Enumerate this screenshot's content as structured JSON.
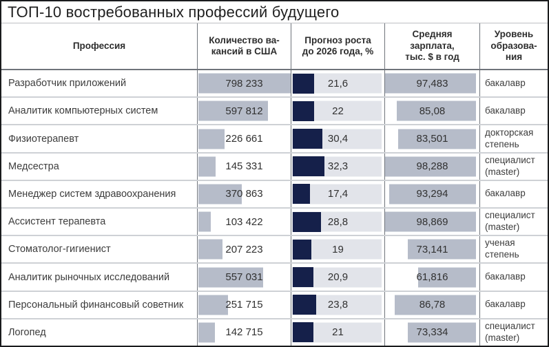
{
  "title": "ТОП-10 востребованных профессий будущего",
  "table": {
    "headers": {
      "profession": "Профессия",
      "vacancies": "Количество ва-\nкансий в США",
      "growth": "Прогноз роста\nдо 2026 года, %",
      "salary": "Средняя\nзарплата,\nтыс. $ в год",
      "education": "Уровень\nобразова-\nния"
    },
    "rows": [
      {
        "profession": "Разработчик приложений",
        "vacancies": "798 233",
        "vacancies_value": 798233,
        "growth": "21,6",
        "growth_value": 21.6,
        "salary": "97,483",
        "salary_value": 97.483,
        "education": "бакалавр"
      },
      {
        "profession": "Аналитик компьютерных систем",
        "vacancies": "597 812",
        "vacancies_value": 597812,
        "growth": "22",
        "growth_value": 22,
        "salary": "85,08",
        "salary_value": 85.08,
        "education": "бакалавр"
      },
      {
        "profession": "Физиотерапевт",
        "vacancies": "226 661",
        "vacancies_value": 226661,
        "growth": "30,4",
        "growth_value": 30.4,
        "salary": "83,501",
        "salary_value": 83.501,
        "education": "докторская\nстепень"
      },
      {
        "profession": "Медсестра",
        "vacancies": "145 331",
        "vacancies_value": 145331,
        "growth": "32,3",
        "growth_value": 32.3,
        "salary": "98,288",
        "salary_value": 98.288,
        "education": "специалист\n(master)"
      },
      {
        "profession": "Менеджер систем здравоохранения",
        "vacancies": "370 863",
        "vacancies_value": 370863,
        "growth": "17,4",
        "growth_value": 17.4,
        "salary": "93,294",
        "salary_value": 93.294,
        "education": "бакалавр"
      },
      {
        "profession": "Ассистент терапевта",
        "vacancies": "103 422",
        "vacancies_value": 103422,
        "growth": "28,8",
        "growth_value": 28.8,
        "salary": "98,869",
        "salary_value": 98.869,
        "education": "специалист\n(master)"
      },
      {
        "profession": "Стоматолог-гигиенист",
        "vacancies": "207 223",
        "vacancies_value": 207223,
        "growth": "19",
        "growth_value": 19,
        "salary": "73,141",
        "salary_value": 73.141,
        "education": "ученая\nстепень"
      },
      {
        "profession": "Аналитик рыночных исследований",
        "vacancies": "557 031",
        "vacancies_value": 557031,
        "growth": "20,9",
        "growth_value": 20.9,
        "salary": "61,816",
        "salary_value": 61.816,
        "education": "бакалавр"
      },
      {
        "profession": "Персональный финансовый советник",
        "vacancies": "251 715",
        "vacancies_value": 251715,
        "growth": "23,8",
        "growth_value": 23.8,
        "salary": "86,78",
        "salary_value": 86.78,
        "education": "бакалавр"
      },
      {
        "profession": "Логопед",
        "vacancies": "142 715",
        "vacancies_value": 142715,
        "growth": "21",
        "growth_value": 21,
        "salary": "73,334",
        "salary_value": 73.334,
        "education": "специалист\n(master)"
      }
    ]
  },
  "colors": {
    "vacancy_bar": "#b6bcc9",
    "salary_bar": "#b6bcc9",
    "growth_bar": "#15204a",
    "growth_track": "#e2e4ea",
    "outer_border": "#1a1b1d",
    "grid_line": "#6e737a",
    "row_line": "#ced1d5",
    "text": "#3c3c3c"
  },
  "chart_data": {
    "type": "table",
    "title": "ТОП-10 востребованных профессий будущего",
    "columns": [
      "Профессия",
      "Количество вакансий в США",
      "Прогноз роста до 2026 года, %",
      "Средняя зарплата, тыс. $ в год",
      "Уровень образования"
    ],
    "categories": [
      "Разработчик приложений",
      "Аналитик компьютерных систем",
      "Физиотерапевт",
      "Медсестра",
      "Менеджер систем здравоохранения",
      "Ассистент терапевта",
      "Стоматолог-гигиенист",
      "Аналитик рыночных исследований",
      "Персональный финансовый советник",
      "Логопед"
    ],
    "series": [
      {
        "name": "Количество вакансий в США",
        "type": "bar",
        "align": "left",
        "values": [
          798233,
          597812,
          226661,
          145331,
          370863,
          103422,
          207223,
          557031,
          251715,
          142715
        ]
      },
      {
        "name": "Прогноз роста до 2026 года, %",
        "type": "bar",
        "align": "left",
        "values": [
          21.6,
          22,
          30.4,
          32.3,
          17.4,
          28.8,
          19,
          20.9,
          23.8,
          21
        ]
      },
      {
        "name": "Средняя зарплата, тыс. $ в год",
        "type": "bar",
        "align": "right",
        "values": [
          97.483,
          85.08,
          83.501,
          98.288,
          93.294,
          98.869,
          73.141,
          61.816,
          86.78,
          73.334
        ]
      },
      {
        "name": "Уровень образования",
        "type": "text",
        "values": [
          "бакалавр",
          "бакалавр",
          "докторская степень",
          "специалист (master)",
          "бакалавр",
          "специалист (master)",
          "ученая степень",
          "бакалавр",
          "бакалавр",
          "специалист (master)"
        ]
      }
    ],
    "legend": false,
    "grid": true
  }
}
